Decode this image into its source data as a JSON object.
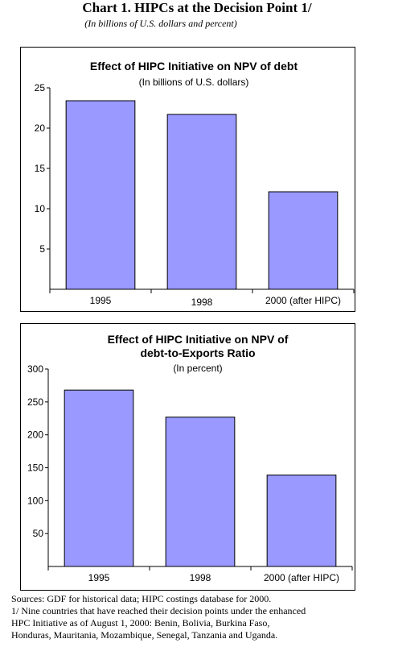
{
  "header": {
    "title": "Chart 1. HIPCs at the Decision Point 1/",
    "subtitle": "(In billions of U.S. dollars and percent)"
  },
  "chart_data": [
    {
      "type": "bar",
      "title": "Effect of HIPC Initiative on NPV of debt",
      "subtitle": "(In billions of U.S. dollars)",
      "categories": [
        "1995",
        "1998",
        "2000 (after HIPC)"
      ],
      "values": [
        23.4,
        21.7,
        12.1
      ],
      "yticks": [
        5,
        10,
        15,
        20,
        25
      ],
      "ylim": [
        0,
        25
      ],
      "grid": false,
      "bar_color": "#9999ff"
    },
    {
      "type": "bar",
      "title": "Effect of HIPC Initiative on NPV of debt-to-Exports Ratio",
      "title_lines": [
        "Effect of HIPC Initiative on NPV of",
        "debt-to-Exports Ratio"
      ],
      "subtitle": "(In percent)",
      "categories": [
        "1995",
        "1998",
        "2000 (after HIPC)"
      ],
      "values": [
        268,
        227,
        139
      ],
      "yticks": [
        50,
        100,
        150,
        200,
        250,
        300
      ],
      "ylim": [
        0,
        300
      ],
      "grid": false,
      "bar_color": "#9999ff"
    }
  ],
  "footnotes": [
    "Sources: GDF for historical data; HIPC costings database for 2000.",
    "1/ Nine countries that have reached their decision points under the enhanced",
    "HPC Initiative as of August 1, 2000: Benin, Bolivia, Burkina Faso,",
    "Honduras, Mauritania, Mozambique, Senegal, Tanzania and Uganda."
  ]
}
